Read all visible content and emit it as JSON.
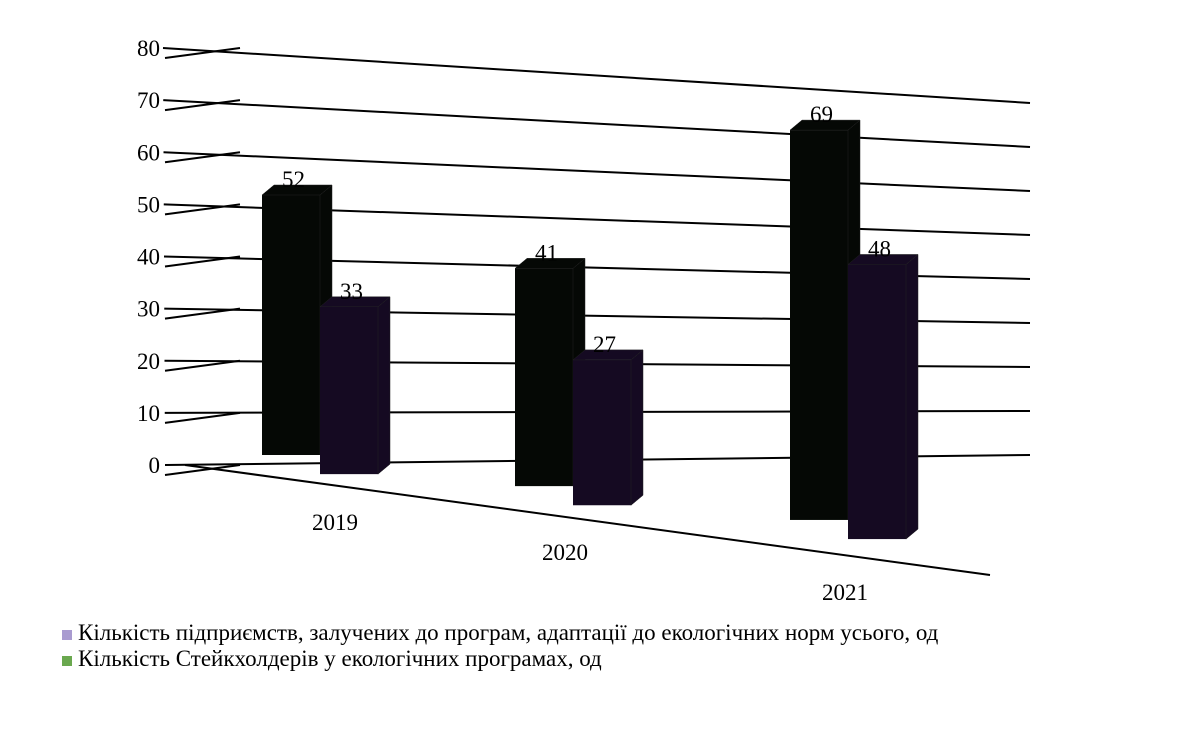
{
  "chart_data": {
    "type": "bar3d",
    "categories": [
      "2019",
      "2020",
      "2021"
    ],
    "series": [
      {
        "name": "Кількість підприємств, залучених до програм, адаптації до екологічних норм усього, од",
        "color": "#050805",
        "legend_color": "#a99bd0",
        "values": [
          52,
          41,
          69
        ]
      },
      {
        "name": "Кількість Стейкхолдерів у екологічних програмах, од",
        "color": "#150a22",
        "legend_color": "#6aa84f",
        "values": [
          33,
          27,
          48
        ]
      }
    ],
    "ylim": [
      0,
      80
    ],
    "yticks": [
      0,
      10,
      20,
      30,
      40,
      50,
      60,
      70,
      80
    ],
    "grid": true,
    "legend": "bottom"
  }
}
